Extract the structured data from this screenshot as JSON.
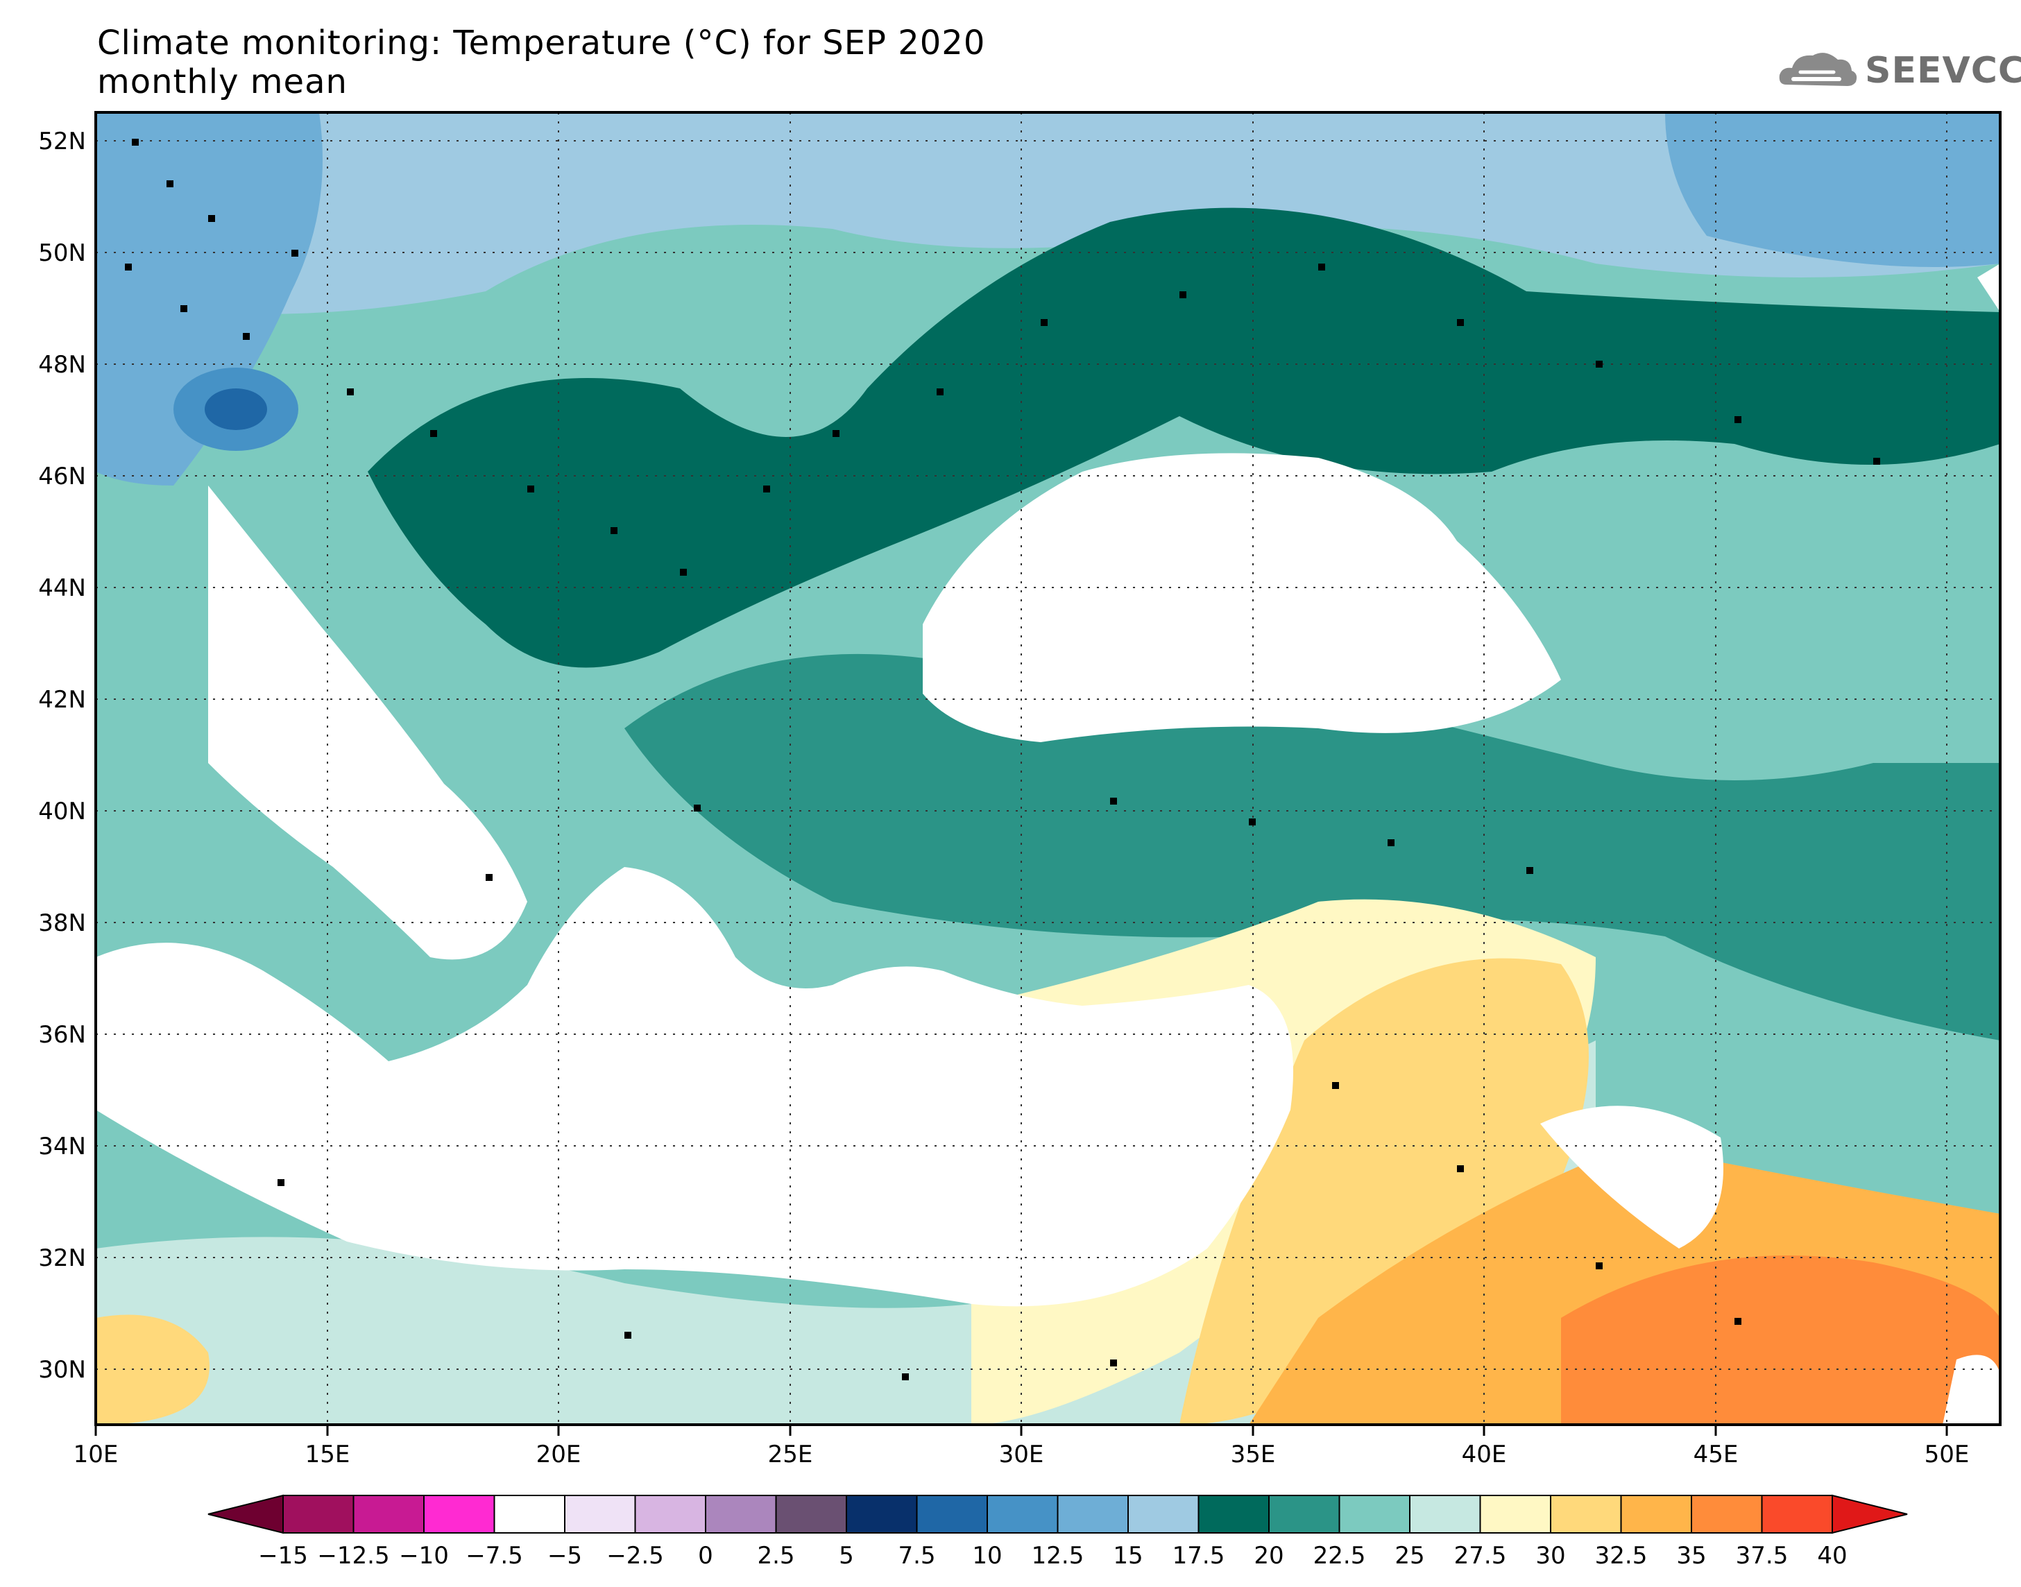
{
  "title": {
    "line1": "Climate monitoring: Temperature (°C) for SEP 2020",
    "line2": "monthly mean"
  },
  "logo": {
    "text": "SEEVCCC",
    "icon": "cloud-logo-icon"
  },
  "map": {
    "lon_ticks": [
      "10E",
      "15E",
      "20E",
      "25E",
      "30E",
      "35E",
      "40E",
      "45E",
      "50E"
    ],
    "lat_ticks": [
      "52N",
      "50N",
      "48N",
      "46N",
      "44N",
      "42N",
      "40N",
      "38N",
      "36N",
      "34N",
      "32N",
      "30N"
    ],
    "lon_range": [
      10,
      51
    ],
    "lat_range": [
      29,
      52.5
    ],
    "grid": "dotted"
  },
  "colorbar": {
    "labels": [
      "-15",
      "-12.5",
      "-10",
      "-7.5",
      "-5",
      "-2.5",
      "0",
      "2.5",
      "5",
      "7.5",
      "10",
      "12.5",
      "15",
      "17.5",
      "20",
      "22.5",
      "25",
      "27.5",
      "30",
      "32.5",
      "35",
      "37.5",
      "40"
    ],
    "colors": [
      "#a0105e",
      "#c81a93",
      "#ff2ad2",
      "#ffffff",
      "#efe2f6",
      "#d8b5e2",
      "#ab86bd",
      "#6a5072",
      "#08306b",
      "#1f67a6",
      "#4692c6",
      "#6eaed6",
      "#9fcae2",
      "#006a5c",
      "#2b9487",
      "#7ccabf",
      "#c6e8e1",
      "#fff8c4",
      "#ffd97b",
      "#ffb54a",
      "#ff8c3a",
      "#fa4a2a"
    ],
    "under_color": "#6e0030",
    "over_color": "#e01818"
  }
}
